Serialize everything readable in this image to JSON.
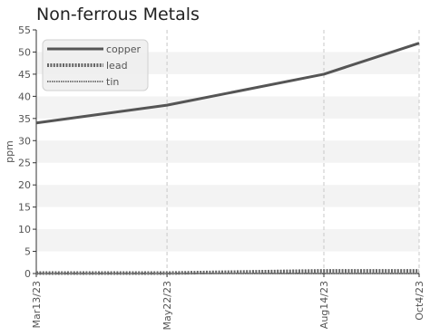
{
  "chart_data": {
    "type": "line",
    "title": "Non-ferrous Metals",
    "xlabel": "",
    "ylabel": "ppm",
    "x": [
      "Mar13/23",
      "May22/23",
      "Aug14/23",
      "Oct4/23"
    ],
    "x_days": [
      0,
      70,
      154,
      205
    ],
    "ylim": [
      0,
      55
    ],
    "yticks": [
      0,
      5,
      10,
      15,
      20,
      25,
      30,
      35,
      40,
      45,
      50,
      55
    ],
    "grid": true,
    "legend_position": "top-left",
    "series": [
      {
        "name": "copper",
        "values": [
          34,
          38,
          45,
          52
        ],
        "color": "#555555",
        "style": "solid"
      },
      {
        "name": "lead",
        "values": [
          0.1,
          0.1,
          0.6,
          0.6
        ],
        "color": "#666666",
        "style": "dotted-thick"
      },
      {
        "name": "tin",
        "values": [
          0,
          0,
          0,
          0
        ],
        "color": "#777777",
        "style": "dotted-thin"
      }
    ]
  }
}
